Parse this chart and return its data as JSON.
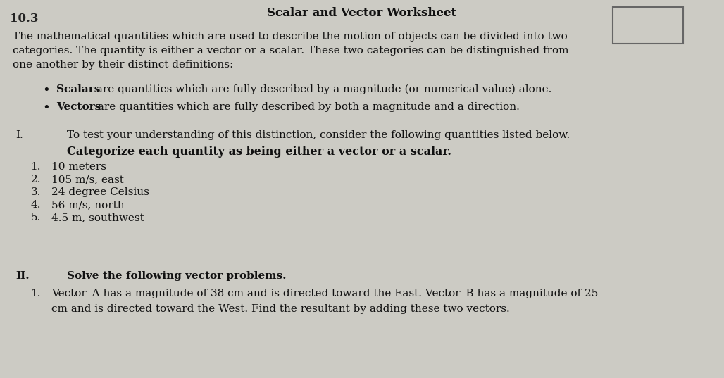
{
  "title": "Scalar and Vector Worksheet",
  "background_color": "#cccbc4",
  "page_label": "10.3",
  "intro_line1": "The mathematical quantities which are used to describe the motion of objects can be divided into two",
  "intro_line2": "categories. The quantity is either a vector or a scalar. These two categories can be distinguished from",
  "intro_line3": "one another by their distinct definitions:",
  "bullet1_bold": "Scalars",
  "bullet1_rest": " are quantities which are fully described by a magnitude (or numerical value) alone.",
  "bullet2_bold": "Vectors",
  "bullet2_rest": " are quantities which are fully described by both a magnitude and a direction.",
  "section_I_label": "I.",
  "section_I_text1": "To test your understanding of this distinction, consider the following quantities listed below.",
  "section_I_text2": "Categorize each quantity as being either a vector or a scalar.",
  "items_I": [
    "10 meters",
    "105 m/s, east",
    "24 degree Celsius",
    "56 m/s, north",
    "4.5 m, southwest"
  ],
  "section_II_label": "II.",
  "section_II_text": "Solve the following vector problems.",
  "prob1_line1": "Vector  A has a magnitude of 38 cm and is directed toward the East. Vector  B has a magnitude of 25",
  "prob1_line2": "cm and is directed toward the West. Find the resultant by adding these two vectors.",
  "title_fontsize": 12,
  "body_fontsize": 11,
  "label_fontsize": 11
}
